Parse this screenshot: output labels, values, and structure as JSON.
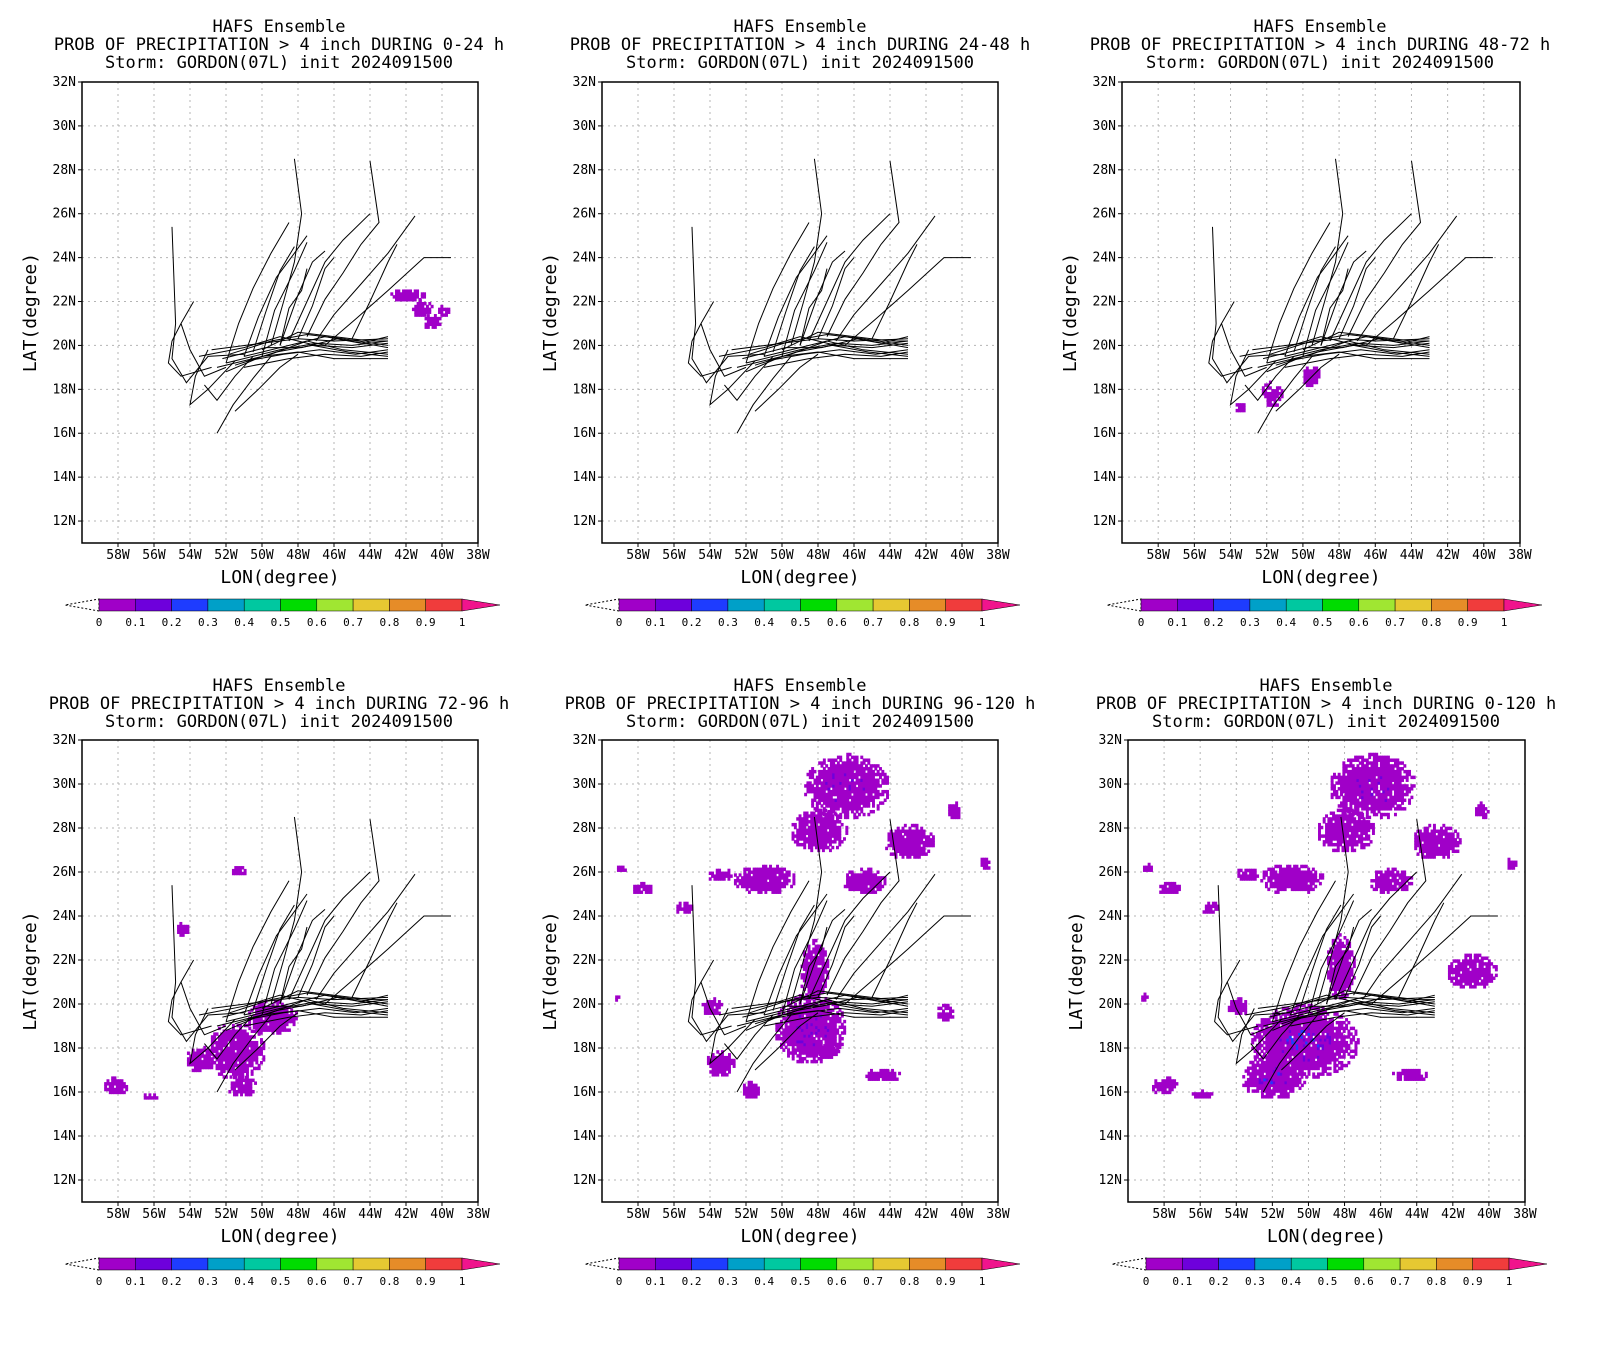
{
  "colorbar": {
    "ticks": [
      "0",
      "0.1",
      "0.2",
      "0.3",
      "0.4",
      "0.5",
      "0.6",
      "0.7",
      "0.8",
      "0.9",
      "1"
    ],
    "colors": [
      "#a000c8",
      "#6e00dc",
      "#1e3cff",
      "#00a0c8",
      "#00c8a0",
      "#00dc00",
      "#a0e632",
      "#e6c832",
      "#e68c28",
      "#f03c3c",
      "#f0148c"
    ]
  },
  "axes": {
    "xlabel": "LON(degree)",
    "ylabel": "LAT(degree)",
    "xticks": [
      "58W",
      "56W",
      "54W",
      "52W",
      "50W",
      "48W",
      "46W",
      "44W",
      "42W",
      "40W",
      "38W"
    ],
    "yticks": [
      "12N",
      "14N",
      "16N",
      "18N",
      "20N",
      "22N",
      "24N",
      "26N",
      "28N",
      "30N",
      "32N"
    ],
    "xlim": [
      -60,
      -38
    ],
    "ylim": [
      11,
      32
    ],
    "grid": true
  },
  "panels": [
    {
      "title1": "HAFS Ensemble",
      "title2": "PROB OF PRECIPITATION > 4 inch DURING  0-24 h",
      "title3": "Storm: GORDON(07L) init 2024091500",
      "blobs": [
        [
          -42.0,
          22.2,
          1.0,
          0.3,
          0.05
        ],
        [
          -41.2,
          21.6,
          0.6,
          0.4,
          0.05
        ],
        [
          -40.6,
          21.0,
          0.5,
          0.35,
          0.05
        ],
        [
          -40.0,
          21.5,
          0.35,
          0.3,
          0.05
        ]
      ]
    },
    {
      "title1": "HAFS Ensemble",
      "title2": "PROB OF PRECIPITATION > 4 inch DURING 24-48 h",
      "title3": "Storm: GORDON(07L) init 2024091500",
      "blobs": []
    },
    {
      "title1": "HAFS Ensemble",
      "title2": "PROB OF PRECIPITATION > 4 inch DURING 48-72 h",
      "title3": "Storm: GORDON(07L) init 2024091500",
      "blobs": [
        [
          -51.8,
          17.7,
          0.6,
          0.6,
          0.05
        ],
        [
          -49.6,
          18.5,
          0.5,
          0.5,
          0.05
        ],
        [
          -53.5,
          17.1,
          0.35,
          0.25,
          0.05
        ]
      ]
    },
    {
      "title1": "HAFS Ensemble",
      "title2": "PROB OF PRECIPITATION > 4 inch DURING 72-96 h",
      "title3": "Storm: GORDON(07L) init 2024091500",
      "blobs": [
        [
          -51.5,
          17.8,
          1.6,
          1.3,
          0.05
        ],
        [
          -49.5,
          19.3,
          1.4,
          0.8,
          0.05
        ],
        [
          -53.5,
          17.4,
          0.8,
          0.6,
          0.05
        ],
        [
          -51.2,
          16.2,
          0.8,
          0.5,
          0.05
        ],
        [
          -58.2,
          16.2,
          0.7,
          0.4,
          0.05
        ],
        [
          -56.3,
          15.7,
          0.4,
          0.15,
          0.05
        ],
        [
          -51.3,
          26.0,
          0.5,
          0.25,
          0.05
        ],
        [
          -54.5,
          23.3,
          0.35,
          0.35,
          0.05
        ]
      ]
    },
    {
      "title1": "HAFS Ensemble",
      "title2": "PROB OF PRECIPITATION > 4 inch DURING 96-120 h",
      "title3": "Storm: GORDON(07L) init 2024091500",
      "blobs": [
        [
          -48.5,
          18.8,
          2.0,
          1.6,
          0.1
        ],
        [
          -48.3,
          21.5,
          0.8,
          1.4,
          0.05
        ],
        [
          -46.5,
          29.8,
          2.4,
          1.5,
          0.1
        ],
        [
          -48.0,
          27.8,
          1.6,
          1.0,
          0.05
        ],
        [
          -43.0,
          27.3,
          1.4,
          0.8,
          0.05
        ],
        [
          -51.0,
          25.6,
          1.8,
          0.7,
          0.05
        ],
        [
          -45.5,
          25.5,
          1.2,
          0.6,
          0.05
        ],
        [
          -53.5,
          17.2,
          0.8,
          0.6,
          0.05
        ],
        [
          -51.8,
          16.0,
          0.5,
          0.4,
          0.05
        ],
        [
          -44.5,
          16.7,
          1.0,
          0.3,
          0.05
        ],
        [
          -47.5,
          17.8,
          0.6,
          0.4,
          0.05
        ],
        [
          -41.0,
          19.5,
          0.5,
          0.4,
          0.05
        ],
        [
          -57.8,
          25.2,
          0.6,
          0.3,
          0.05
        ],
        [
          -55.5,
          24.3,
          0.5,
          0.3,
          0.05
        ],
        [
          -53.5,
          25.8,
          0.7,
          0.3,
          0.05
        ],
        [
          -54.0,
          19.8,
          0.6,
          0.4,
          0.05
        ],
        [
          -38.8,
          26.3,
          0.3,
          0.3,
          0.05
        ],
        [
          -40.5,
          28.7,
          0.4,
          0.4,
          0.05
        ],
        [
          -59.0,
          26.1,
          0.3,
          0.2,
          0.05
        ],
        [
          -59.2,
          20.2,
          0.2,
          0.2,
          0.05
        ]
      ]
    },
    {
      "title1": "HAFS Ensemble",
      "title2": "PROB OF PRECIPITATION > 4 inch DURING 0-120 h",
      "title3": "Storm: GORDON(07L) init 2024091500",
      "blobs": [
        [
          -50.3,
          18.2,
          3.0,
          1.7,
          0.15
        ],
        [
          -52.0,
          16.6,
          1.8,
          1.0,
          0.15
        ],
        [
          -48.3,
          21.6,
          0.8,
          1.5,
          0.05
        ],
        [
          -46.5,
          29.8,
          2.4,
          1.5,
          0.1
        ],
        [
          -48.0,
          27.8,
          1.6,
          1.0,
          0.05
        ],
        [
          -43.0,
          27.3,
          1.4,
          0.8,
          0.05
        ],
        [
          -51.0,
          25.6,
          1.8,
          0.7,
          0.05
        ],
        [
          -45.5,
          25.5,
          1.2,
          0.6,
          0.05
        ],
        [
          -41.0,
          21.4,
          1.4,
          0.8,
          0.05
        ],
        [
          -58.0,
          16.2,
          0.8,
          0.4,
          0.05
        ],
        [
          -56.0,
          15.8,
          0.6,
          0.2,
          0.05
        ],
        [
          -44.5,
          16.7,
          1.0,
          0.3,
          0.05
        ],
        [
          -57.8,
          25.2,
          0.6,
          0.3,
          0.05
        ],
        [
          -55.5,
          24.3,
          0.5,
          0.3,
          0.05
        ],
        [
          -53.5,
          25.8,
          0.7,
          0.3,
          0.05
        ],
        [
          -54.0,
          19.8,
          0.6,
          0.4,
          0.05
        ],
        [
          -38.8,
          26.3,
          0.3,
          0.3,
          0.05
        ],
        [
          -40.5,
          28.7,
          0.4,
          0.4,
          0.05
        ],
        [
          -59.0,
          26.1,
          0.3,
          0.2,
          0.05
        ],
        [
          -59.2,
          20.2,
          0.2,
          0.2,
          0.05
        ]
      ]
    }
  ],
  "tracks": [
    [
      [
        -52.0,
        19.2
      ],
      [
        -49.0,
        19.8
      ],
      [
        -47.0,
        20.1
      ],
      [
        -45.0,
        20.0
      ],
      [
        -43.0,
        20.2
      ]
    ],
    [
      [
        -52.5,
        19.0
      ],
      [
        -49.5,
        19.6
      ],
      [
        -47.5,
        20.2
      ],
      [
        -45.5,
        19.8
      ],
      [
        -43.0,
        19.6
      ]
    ],
    [
      [
        -51.0,
        19.5
      ],
      [
        -48.5,
        20.0
      ],
      [
        -46.5,
        20.4
      ],
      [
        -44.5,
        20.1
      ],
      [
        -43.0,
        20.4
      ]
    ],
    [
      [
        -52.2,
        19.4
      ],
      [
        -49.8,
        19.9
      ],
      [
        -47.8,
        19.9
      ],
      [
        -45.8,
        20.3
      ],
      [
        -43.0,
        19.9
      ]
    ],
    [
      [
        -51.5,
        19.1
      ],
      [
        -49.2,
        19.7
      ],
      [
        -47.2,
        20.0
      ],
      [
        -45.2,
        19.7
      ],
      [
        -43.0,
        19.5
      ]
    ],
    [
      [
        -52.8,
        19.8
      ],
      [
        -50.0,
        20.1
      ],
      [
        -48.0,
        20.3
      ],
      [
        -46.0,
        20.2
      ],
      [
        -43.0,
        20.3
      ]
    ],
    [
      [
        -51.8,
        19.6
      ],
      [
        -49.5,
        20.2
      ],
      [
        -47.5,
        20.5
      ],
      [
        -45.5,
        20.3
      ],
      [
        -43.0,
        20.0
      ]
    ],
    [
      [
        -50.8,
        19.3
      ],
      [
        -48.8,
        19.6
      ],
      [
        -46.8,
        19.8
      ],
      [
        -44.8,
        19.6
      ],
      [
        -43.0,
        19.8
      ]
    ],
    [
      [
        -53.5,
        19.5
      ],
      [
        -51.0,
        19.9
      ],
      [
        -49.0,
        20.4
      ],
      [
        -47.0,
        20.0
      ],
      [
        -45.0,
        19.9
      ],
      [
        -43.0,
        20.1
      ]
    ],
    [
      [
        -52.0,
        18.8
      ],
      [
        -50.0,
        19.5
      ],
      [
        -48.0,
        19.7
      ],
      [
        -46.0,
        19.4
      ],
      [
        -43.0,
        19.4
      ]
    ],
    [
      [
        -51.0,
        19.0
      ],
      [
        -48.5,
        19.4
      ],
      [
        -46.5,
        19.6
      ],
      [
        -44.5,
        19.5
      ],
      [
        -43.0,
        19.7
      ]
    ],
    [
      [
        -50.0,
        19.8
      ],
      [
        -48.0,
        20.6
      ],
      [
        -46.0,
        20.4
      ],
      [
        -44.0,
        20.2
      ],
      [
        -43.0,
        20.2
      ]
    ],
    [
      [
        -55.0,
        25.4
      ],
      [
        -54.8,
        21.0
      ],
      [
        -55.0,
        19.4
      ],
      [
        -54.2,
        18.3
      ],
      [
        -53.0,
        19.5
      ],
      [
        -51.0,
        19.6
      ]
    ],
    [
      [
        -54.5,
        21.0
      ],
      [
        -55.0,
        20.2
      ],
      [
        -55.2,
        19.2
      ],
      [
        -54.5,
        18.6
      ],
      [
        -52.8,
        19.0
      ]
    ],
    [
      [
        -53.8,
        22.0
      ],
      [
        -54.5,
        21.0
      ],
      [
        -54.0,
        19.8
      ],
      [
        -53.2,
        18.6
      ],
      [
        -52.0,
        19.0
      ]
    ],
    [
      [
        -53.0,
        19.8
      ],
      [
        -53.7,
        18.6
      ],
      [
        -54.0,
        17.3
      ],
      [
        -53.0,
        18.0
      ],
      [
        -51.5,
        19.3
      ]
    ],
    [
      [
        -53.2,
        18.2
      ],
      [
        -52.5,
        17.5
      ],
      [
        -51.5,
        18.6
      ],
      [
        -50.5,
        19.5
      ]
    ],
    [
      [
        -52.5,
        16.0
      ],
      [
        -51.6,
        17.3
      ],
      [
        -50.5,
        18.5
      ],
      [
        -49.5,
        19.5
      ]
    ],
    [
      [
        -51.5,
        17.0
      ],
      [
        -50.2,
        18.0
      ],
      [
        -49.0,
        19.0
      ],
      [
        -48.0,
        19.6
      ]
    ],
    [
      [
        -52.0,
        19.2
      ],
      [
        -51.3,
        21.0
      ],
      [
        -50.5,
        22.6
      ],
      [
        -49.5,
        24.2
      ],
      [
        -48.5,
        25.6
      ]
    ],
    [
      [
        -51.0,
        19.5
      ],
      [
        -50.2,
        21.3
      ],
      [
        -49.2,
        23.1
      ],
      [
        -48.2,
        24.2
      ],
      [
        -47.5,
        25.0
      ]
    ],
    [
      [
        -50.0,
        19.5
      ],
      [
        -49.3,
        21.6
      ],
      [
        -48.2,
        23.4
      ],
      [
        -47.5,
        24.7
      ]
    ],
    [
      [
        -49.5,
        20.0
      ],
      [
        -48.8,
        22.0
      ],
      [
        -48.2,
        23.8
      ],
      [
        -47.8,
        26.0
      ],
      [
        -48.2,
        28.5
      ]
    ],
    [
      [
        -49.0,
        20.0
      ],
      [
        -48.5,
        21.7
      ],
      [
        -47.8,
        22.5
      ],
      [
        -47.5,
        23.5
      ]
    ],
    [
      [
        -48.5,
        20.2
      ],
      [
        -47.5,
        22.0
      ],
      [
        -46.5,
        23.8
      ],
      [
        -45.5,
        24.8
      ],
      [
        -44.0,
        26.0
      ]
    ],
    [
      [
        -47.5,
        20.4
      ],
      [
        -46.5,
        22.1
      ],
      [
        -45.5,
        23.3
      ],
      [
        -44.5,
        24.6
      ],
      [
        -43.5,
        25.6
      ],
      [
        -44.0,
        28.4
      ]
    ],
    [
      [
        -47.0,
        20.2
      ],
      [
        -46.0,
        21.4
      ],
      [
        -44.5,
        22.8
      ],
      [
        -43.0,
        24.2
      ],
      [
        -41.5,
        25.9
      ]
    ],
    [
      [
        -46.5,
        20.0
      ],
      [
        -44.8,
        21.2
      ],
      [
        -43.0,
        22.5
      ],
      [
        -41.0,
        24.0
      ],
      [
        -39.5,
        24.0
      ]
    ],
    [
      [
        -48.0,
        20.3
      ],
      [
        -47.2,
        21.8
      ],
      [
        -46.5,
        23.5
      ],
      [
        -46.0,
        24.0
      ]
    ],
    [
      [
        -49.0,
        20.0
      ],
      [
        -48.0,
        22.3
      ],
      [
        -47.2,
        23.8
      ],
      [
        -46.5,
        24.3
      ]
    ],
    [
      [
        -45.0,
        20.3
      ],
      [
        -44.0,
        22.0
      ],
      [
        -43.0,
        23.8
      ],
      [
        -42.5,
        24.6
      ]
    ],
    [
      [
        -50.5,
        19.7
      ],
      [
        -49.8,
        21.5
      ],
      [
        -49.0,
        23.4
      ],
      [
        -48.2,
        24.5
      ]
    ]
  ]
}
